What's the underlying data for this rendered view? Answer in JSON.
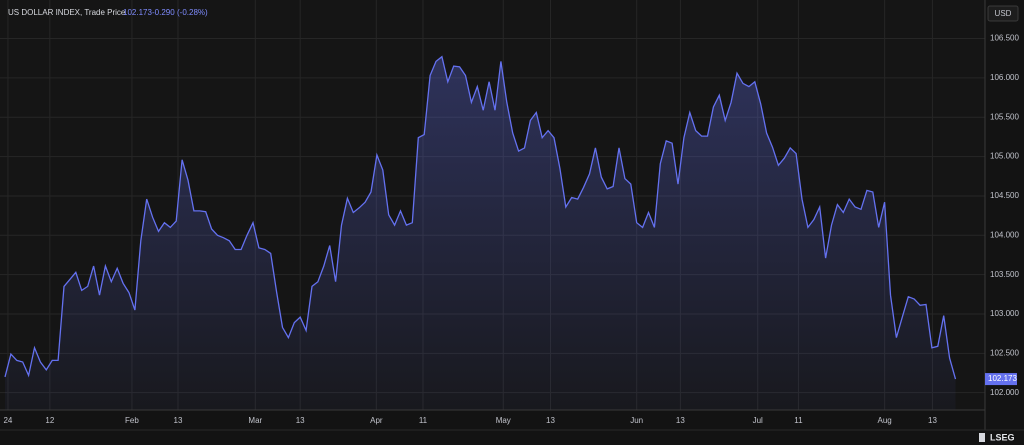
{
  "chart_data": {
    "type": "area",
    "title": "US DOLLAR INDEX, Trade Price",
    "last_price": "102.173",
    "change": "-0.290",
    "change_pct": "(-0.28%)",
    "currency": "USD",
    "brand": "LSEG",
    "color": "#6471f0",
    "values": [
      102.2,
      102.49,
      102.41,
      102.39,
      102.22,
      102.57,
      102.39,
      102.29,
      102.41,
      102.41,
      103.35,
      103.44,
      103.53,
      103.3,
      103.35,
      103.61,
      103.24,
      103.61,
      103.41,
      103.58,
      103.39,
      103.27,
      103.05,
      103.93,
      104.46,
      104.23,
      104.05,
      104.16,
      104.1,
      104.18,
      104.96,
      104.7,
      104.31,
      104.31,
      104.3,
      104.08,
      104.0,
      103.97,
      103.93,
      103.82,
      103.82,
      104.0,
      104.16,
      103.84,
      103.82,
      103.77,
      103.28,
      102.83,
      102.7,
      102.89,
      102.96,
      102.79,
      103.35,
      103.41,
      103.61,
      103.87,
      103.41,
      104.13,
      104.47,
      104.29,
      104.35,
      104.42,
      104.55,
      105.02,
      104.83,
      104.26,
      104.13,
      104.31,
      104.13,
      104.16,
      105.24,
      105.28,
      106.03,
      106.21,
      106.27,
      105.95,
      106.15,
      106.14,
      106.03,
      105.69,
      105.89,
      105.59,
      105.95,
      105.59,
      106.21,
      105.69,
      105.3,
      105.07,
      105.11,
      105.46,
      105.56,
      105.24,
      105.33,
      105.24,
      104.85,
      104.36,
      104.48,
      104.46,
      104.61,
      104.78,
      105.11,
      104.74,
      104.59,
      104.62,
      105.11,
      104.72,
      104.65,
      104.16,
      104.1,
      104.29,
      104.1,
      104.91,
      105.2,
      105.17,
      104.65,
      105.24,
      105.56,
      105.33,
      105.26,
      105.26,
      105.63,
      105.78,
      105.46,
      105.69,
      106.06,
      105.93,
      105.89,
      105.95,
      105.67,
      105.3,
      105.12,
      104.89,
      104.98,
      105.11,
      105.04,
      104.46,
      104.1,
      104.2,
      104.36,
      103.71,
      104.13,
      104.39,
      104.29,
      104.46,
      104.36,
      104.33,
      104.57,
      104.55,
      104.1,
      104.42,
      103.24,
      102.7,
      102.96,
      103.22,
      103.19,
      103.11,
      103.12,
      102.57,
      102.59,
      102.98,
      102.44,
      102.173
    ],
    "xlim": [
      0,
      166
    ],
    "xticks": [
      {
        "value": 0.5,
        "label": "24"
      },
      {
        "value": 7.6,
        "label": "12"
      },
      {
        "value": 21.5,
        "label": "Feb"
      },
      {
        "value": 29.3,
        "label": "13"
      },
      {
        "value": 42.4,
        "label": "Mar"
      },
      {
        "value": 50,
        "label": "13"
      },
      {
        "value": 62.9,
        "label": "Apr"
      },
      {
        "value": 70.8,
        "label": "11"
      },
      {
        "value": 84.4,
        "label": "May"
      },
      {
        "value": 92.4,
        "label": "13"
      },
      {
        "value": 107,
        "label": "Jun"
      },
      {
        "value": 114.4,
        "label": "13"
      },
      {
        "value": 127.5,
        "label": "Jul"
      },
      {
        "value": 134.4,
        "label": "11"
      },
      {
        "value": 149,
        "label": "Aug"
      },
      {
        "value": 157.1,
        "label": "13"
      }
    ],
    "ylim": [
      101.78,
      106.99
    ],
    "yticks": [
      {
        "value": 102,
        "label": "102.000"
      },
      {
        "value": 102.5,
        "label": "102.500"
      },
      {
        "value": 103,
        "label": "103.000"
      },
      {
        "value": 103.5,
        "label": "103.500"
      },
      {
        "value": 104,
        "label": "104.000"
      },
      {
        "value": 104.5,
        "label": "104.500"
      },
      {
        "value": 105,
        "label": "105.000"
      },
      {
        "value": 105.5,
        "label": "105.500"
      },
      {
        "value": 106,
        "label": "106.000"
      },
      {
        "value": 106.5,
        "label": "106.500"
      }
    ],
    "grid": true
  }
}
